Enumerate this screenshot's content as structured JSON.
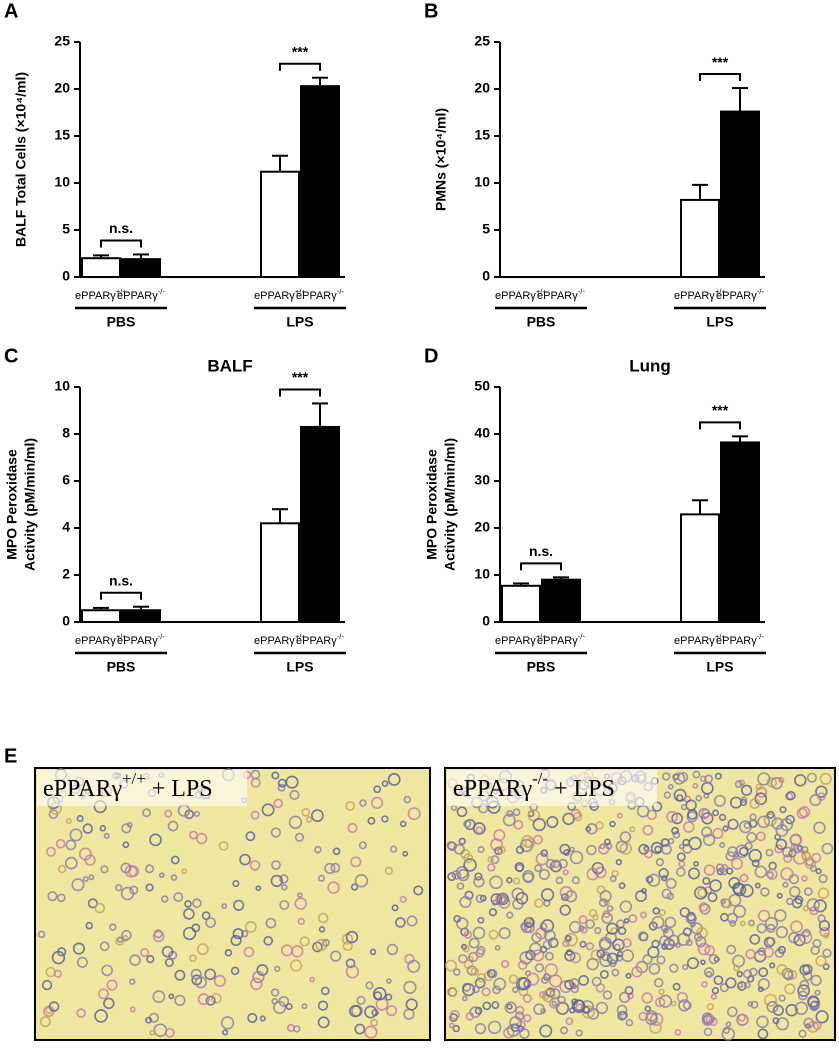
{
  "chart_data": [
    {
      "type": "bar",
      "panel": "A",
      "y_label": [
        "BALF Total Cells (×10⁴/ml)"
      ],
      "categories": [
        "PBS",
        "LPS"
      ],
      "series": [
        {
          "name": "ePPARγ+/+",
          "color": "#ffffff",
          "values": [
            2.0,
            11.2
          ],
          "errors": [
            0.3,
            1.7
          ]
        },
        {
          "name": "ePPARγ-/-",
          "color": "#000000",
          "values": [
            1.9,
            20.3
          ],
          "errors": [
            0.5,
            0.9
          ]
        }
      ],
      "significance": [
        "n.s.",
        "***"
      ],
      "ylim": [
        0,
        25
      ],
      "yticks": [
        0,
        5,
        10,
        15,
        20,
        25
      ]
    },
    {
      "type": "bar",
      "panel": "B",
      "y_label": [
        "PMNs (×10⁴/ml)"
      ],
      "categories": [
        "PBS",
        "LPS"
      ],
      "series": [
        {
          "name": "ePPARγ+/+",
          "color": "#ffffff",
          "values": [
            0,
            8.2
          ],
          "errors": [
            null,
            1.6
          ]
        },
        {
          "name": "ePPARγ-/-",
          "color": "#000000",
          "values": [
            0,
            17.6
          ],
          "errors": [
            null,
            2.5
          ]
        }
      ],
      "significance": [
        null,
        "***"
      ],
      "ylim": [
        0,
        25
      ],
      "yticks": [
        0,
        5,
        10,
        15,
        20,
        25
      ]
    },
    {
      "type": "bar",
      "panel": "C",
      "title": "BALF",
      "y_label": [
        "MPO Peroxidase",
        "Activity (pM/min/ml)"
      ],
      "categories": [
        "PBS",
        "LPS"
      ],
      "series": [
        {
          "name": "ePPARγ+/+",
          "color": "#ffffff",
          "values": [
            0.5,
            4.2
          ],
          "errors": [
            0.1,
            0.6
          ]
        },
        {
          "name": "ePPARγ-/-",
          "color": "#000000",
          "values": [
            0.5,
            8.3
          ],
          "errors": [
            0.15,
            1.0
          ]
        }
      ],
      "significance": [
        "n.s.",
        "***"
      ],
      "ylim": [
        0,
        10
      ],
      "yticks": [
        0,
        2,
        4,
        6,
        8,
        10
      ]
    },
    {
      "type": "bar",
      "panel": "D",
      "title": "Lung",
      "y_label": [
        "MPO Peroxidase",
        "Activity (pM/min/ml)"
      ],
      "categories": [
        "PBS",
        "LPS"
      ],
      "series": [
        {
          "name": "ePPARγ+/+",
          "color": "#ffffff",
          "values": [
            7.7,
            22.9
          ],
          "errors": [
            0.5,
            3.0
          ]
        },
        {
          "name": "ePPARγ-/-",
          "color": "#000000",
          "values": [
            9.0,
            38.2
          ],
          "errors": [
            0.5,
            1.3
          ]
        }
      ],
      "significance": [
        "n.s.",
        "***"
      ],
      "ylim": [
        0,
        50
      ],
      "yticks": [
        0,
        10,
        20,
        30,
        40,
        50
      ]
    }
  ],
  "panel_e": {
    "panel": "E",
    "images": [
      {
        "label": "ePPARγ+/+ + LPS"
      },
      {
        "label": "ePPARγ-/- + LPS"
      }
    ]
  }
}
